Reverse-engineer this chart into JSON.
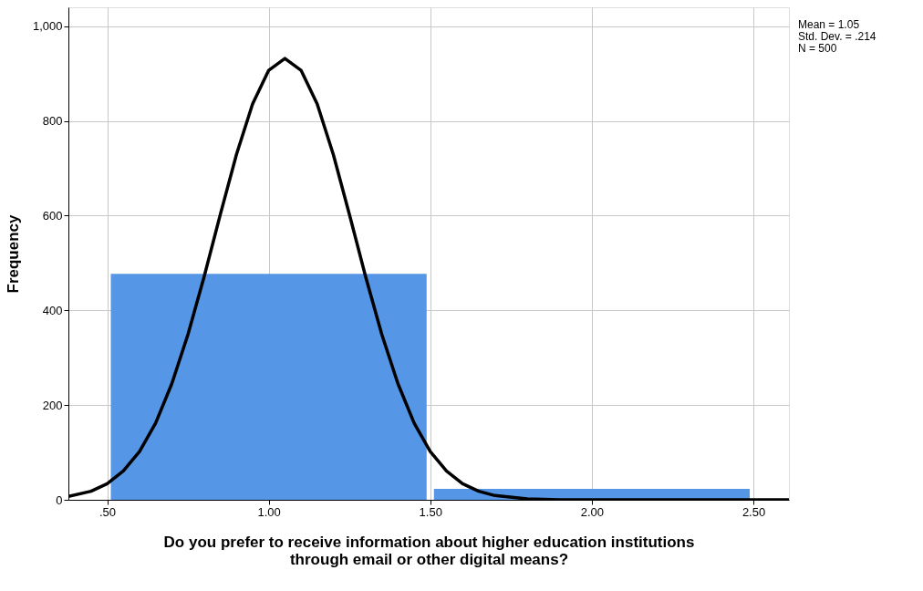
{
  "chart_data": {
    "type": "histogram",
    "xlabel": "Do you prefer to receive information about higher education institutions\nthrough email or other digital means?",
    "ylabel": "Frequency",
    "bins": [
      0.5,
      1.5,
      2.5
    ],
    "values": [
      477,
      23
    ],
    "color": "#5596e6",
    "series": [
      {
        "type": "line",
        "color": "#000000",
        "x": [
          0.38,
          0.45,
          0.5,
          0.55,
          0.6,
          0.65,
          0.7,
          0.75,
          0.8,
          0.85,
          0.9,
          0.95,
          1.0,
          1.05,
          1.1,
          1.15,
          1.2,
          1.25,
          1.3,
          1.35,
          1.4,
          1.45,
          1.5,
          1.55,
          1.6,
          1.65,
          1.7,
          1.8,
          1.9,
          2.0,
          2.3,
          2.61
        ],
        "values": [
          7,
          18,
          34,
          61,
          102,
          162,
          245,
          349,
          471,
          602,
          729,
          836,
          907,
          932,
          907,
          836,
          729,
          602,
          471,
          349,
          245,
          162,
          102,
          61,
          34,
          18,
          9,
          2,
          0,
          0,
          0,
          0
        ]
      }
    ],
    "xlim": [
      0.38,
      2.61
    ],
    "xticks": [
      {
        "value": 0.5,
        "label": ".50"
      },
      {
        "value": 1.0,
        "label": "1.00"
      },
      {
        "value": 1.5,
        "label": "1.50"
      },
      {
        "value": 2.0,
        "label": "2.00"
      },
      {
        "value": 2.5,
        "label": "2.50"
      }
    ],
    "ylim": [
      0,
      1040
    ],
    "yticks": [
      0,
      200,
      400,
      600,
      800,
      {
        "value": 1000,
        "label": "1,000"
      }
    ],
    "grid": true,
    "marker": "none",
    "line_style": "solid",
    "annotations": [
      "Mean = 1.05",
      "Std. Dev. = .214",
      "N = 500"
    ]
  }
}
